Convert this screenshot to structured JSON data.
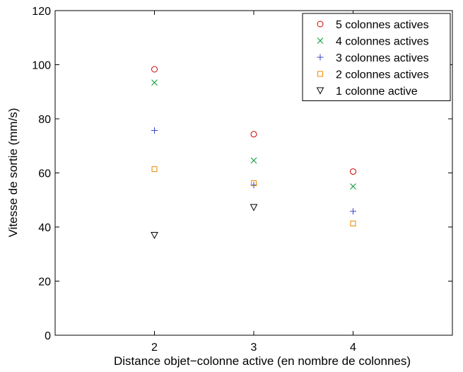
{
  "chart_data": {
    "type": "scatter",
    "xlabel": "Distance objet−colonne active (en nombre de colonnes)",
    "ylabel": "Vitesse de sortie (mm/s)",
    "xlim": [
      1,
      5
    ],
    "ylim": [
      0,
      120
    ],
    "xticks": [
      2,
      3,
      4
    ],
    "yticks": [
      0,
      20,
      40,
      60,
      80,
      100,
      120
    ],
    "grid": false,
    "legend_position": "top-right",
    "series": [
      {
        "name": "5 colonnes actives",
        "marker": "circle",
        "color": "#cc0000",
        "x": [
          2,
          3,
          4
        ],
        "y": [
          98.3,
          74.3,
          60.5
        ]
      },
      {
        "name": "4 colonnes actives",
        "marker": "x",
        "color": "#009933",
        "x": [
          2,
          3,
          4
        ],
        "y": [
          93.4,
          64.6,
          55.0
        ]
      },
      {
        "name": "3 colonnes actives",
        "marker": "plus",
        "color": "#3344cc",
        "x": [
          2,
          3,
          4
        ],
        "y": [
          75.7,
          55.5,
          45.8
        ]
      },
      {
        "name": "2 colonnes actives",
        "marker": "square",
        "color": "#ee8800",
        "x": [
          2,
          3,
          4
        ],
        "y": [
          61.4,
          56.2,
          41.3
        ]
      },
      {
        "name": "1 colonne active",
        "marker": "triangle-down",
        "color": "#000000",
        "x": [
          2,
          3
        ],
        "y": [
          37.0,
          47.3
        ]
      }
    ]
  }
}
